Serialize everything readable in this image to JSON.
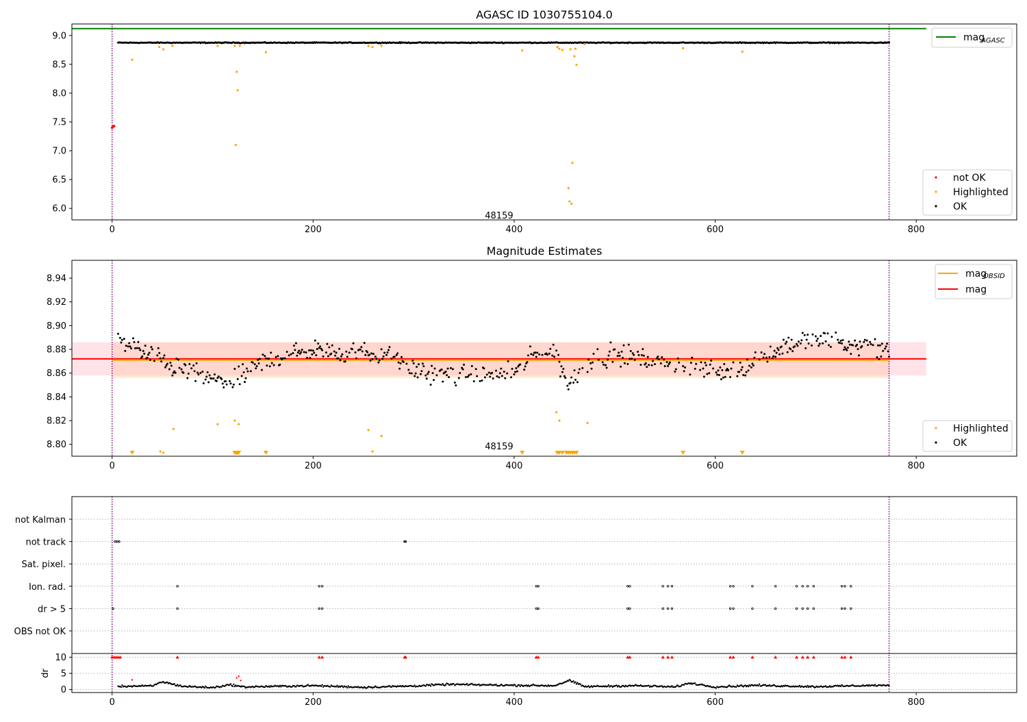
{
  "colors": {
    "ok": "#000000",
    "highlighted": "#ffa500",
    "not_ok": "#ff0000",
    "agasc_line": "#008000",
    "mag_line": "#ff0000",
    "mag_obsid_line": "#ffa500",
    "band_red": "#ffc0cb",
    "band_orange": "#ffdab0",
    "boundary": "#800080"
  },
  "obsid_label": "48159",
  "chart_data": [
    {
      "type": "scatter",
      "title": "AGASC ID 1030755104.0",
      "xlim": [
        -40,
        900
      ],
      "ylim": [
        5.8,
        9.2
      ],
      "xticks": [
        "0",
        "200",
        "400",
        "600",
        "800"
      ],
      "yticks": [
        "6.0",
        "6.5",
        "7.0",
        "7.5",
        "8.0",
        "8.5",
        "9.0"
      ],
      "boundaries": [
        0,
        773
      ],
      "annotation": {
        "text": "48159",
        "x": 385,
        "y": 5.87
      },
      "mag_agasc": 9.12,
      "ok_level": 8.875,
      "ok_jitter": 0.012,
      "ok_range": [
        6,
        773
      ],
      "highlighted": [
        [
          20,
          8.58
        ],
        [
          47,
          8.8
        ],
        [
          51,
          8.76
        ],
        [
          60,
          8.82
        ],
        [
          105,
          8.82
        ],
        [
          122,
          8.82
        ],
        [
          124,
          8.37
        ],
        [
          125,
          8.05
        ],
        [
          123,
          7.1
        ],
        [
          127,
          8.82
        ],
        [
          153,
          8.71
        ],
        [
          255,
          8.82
        ],
        [
          259,
          8.8
        ],
        [
          268,
          8.82
        ],
        [
          408,
          8.74
        ],
        [
          443,
          8.8
        ],
        [
          445,
          8.77
        ],
        [
          448,
          8.75
        ],
        [
          454,
          6.35
        ],
        [
          455,
          6.12
        ],
        [
          456,
          8.76
        ],
        [
          457,
          6.08
        ],
        [
          458,
          6.79
        ],
        [
          460,
          8.64
        ],
        [
          461,
          8.77
        ],
        [
          462,
          8.49
        ],
        [
          470,
          8.85
        ],
        [
          568,
          8.78
        ],
        [
          627,
          8.72
        ]
      ],
      "not_ok": [
        [
          0,
          7.4
        ],
        [
          1,
          7.42
        ],
        [
          2,
          7.43
        ]
      ],
      "legend": {
        "agasc_main": "mag",
        "agasc_sub": "AGASC",
        "not_ok": "not OK",
        "highlighted": "Highlighted",
        "ok": "OK"
      }
    },
    {
      "type": "scatter",
      "title": "Magnitude Estimates",
      "xlim": [
        -40,
        900
      ],
      "ylim": [
        8.79,
        8.955
      ],
      "xticks": [
        "0",
        "200",
        "400",
        "600",
        "800"
      ],
      "yticks": [
        "8.80",
        "8.82",
        "8.84",
        "8.86",
        "8.88",
        "8.90",
        "8.92",
        "8.94"
      ],
      "boundaries": [
        0,
        773
      ],
      "annotation": {
        "text": "48159",
        "x": 385,
        "y": 8.798
      },
      "mag": 8.872,
      "mag_band": [
        8.858,
        8.886
      ],
      "mag_obsid": 8.871,
      "mag_obsid_band": [
        8.856,
        8.886
      ],
      "ok_trend": [
        [
          6,
          8.89
        ],
        [
          30,
          8.878
        ],
        [
          60,
          8.866
        ],
        [
          80,
          8.86
        ],
        [
          100,
          8.854
        ],
        [
          120,
          8.852
        ],
        [
          150,
          8.87
        ],
        [
          200,
          8.88
        ],
        [
          250,
          8.878
        ],
        [
          280,
          8.875
        ],
        [
          300,
          8.862
        ],
        [
          350,
          8.858
        ],
        [
          400,
          8.86
        ],
        [
          420,
          8.875
        ],
        [
          440,
          8.878
        ],
        [
          455,
          8.85
        ],
        [
          470,
          8.868
        ],
        [
          500,
          8.877
        ],
        [
          540,
          8.87
        ],
        [
          580,
          8.864
        ],
        [
          620,
          8.862
        ],
        [
          640,
          8.87
        ],
        [
          670,
          8.884
        ],
        [
          700,
          8.888
        ],
        [
          740,
          8.884
        ],
        [
          773,
          8.88
        ]
      ],
      "ok_scatter": 0.013,
      "highlighted": [
        [
          48,
          8.794
        ],
        [
          51,
          8.793
        ],
        [
          61,
          8.813
        ],
        [
          105,
          8.817
        ],
        [
          122,
          8.82
        ],
        [
          126,
          8.817
        ],
        [
          255,
          8.812
        ],
        [
          259,
          8.794
        ],
        [
          268,
          8.807
        ],
        [
          442,
          8.827
        ],
        [
          445,
          8.82
        ],
        [
          473,
          8.818
        ]
      ],
      "off_scale_x": [
        20,
        122,
        123,
        124,
        125,
        126,
        153,
        408,
        443,
        445,
        448,
        452,
        454,
        456,
        458,
        460,
        462,
        568,
        627
      ],
      "legend": {
        "obsid_main": "mag",
        "obsid_sub": "OBSID",
        "mag": "mag",
        "highlighted": "Highlighted",
        "ok": "OK"
      }
    },
    {
      "type": "scatter",
      "xlim": [
        -40,
        900
      ],
      "xticks": [
        "0",
        "200",
        "400",
        "600",
        "800"
      ],
      "boundaries": [
        0,
        773
      ],
      "flag_rows": [
        "not Kalman",
        "not track",
        "Sat. pixel.",
        "Ion. rad.",
        "dr > 5",
        "OBS not OK"
      ],
      "flags": {
        "not track": [
          3,
          5,
          7,
          291,
          292
        ],
        "Ion. rad.": [
          65,
          206,
          209,
          422,
          424,
          513,
          515,
          548,
          553,
          557,
          615,
          618,
          637,
          660,
          681,
          687,
          692,
          698,
          726,
          729,
          735
        ],
        "dr > 5": [
          1,
          65,
          206,
          209,
          422,
          424,
          513,
          515,
          548,
          553,
          557,
          615,
          618,
          637,
          660,
          681,
          687,
          692,
          698,
          726,
          729,
          735
        ]
      },
      "dr_ylabel": "dr",
      "dr_yticks": [
        "0",
        "5",
        "10"
      ],
      "dr_ylim": [
        -0.5,
        10.5
      ],
      "dr_flagged": [
        0,
        2,
        4,
        6,
        8,
        65,
        206,
        209,
        291,
        292,
        422,
        424,
        513,
        515,
        548,
        553,
        557,
        615,
        618,
        637,
        660,
        681,
        687,
        692,
        698,
        726,
        729,
        735
      ],
      "dr_red_points": [
        [
          20,
          3.0
        ],
        [
          124,
          3.6
        ],
        [
          126,
          4.1
        ],
        [
          128,
          2.8
        ]
      ],
      "dr_trend": [
        [
          6,
          1.0
        ],
        [
          40,
          1.1
        ],
        [
          50,
          2.4
        ],
        [
          70,
          1.0
        ],
        [
          100,
          0.6
        ],
        [
          118,
          1.5
        ],
        [
          130,
          0.8
        ],
        [
          200,
          1.2
        ],
        [
          250,
          0.7
        ],
        [
          300,
          1.1
        ],
        [
          335,
          1.6
        ],
        [
          400,
          1.3
        ],
        [
          440,
          1.2
        ],
        [
          455,
          2.8
        ],
        [
          470,
          0.9
        ],
        [
          520,
          1.2
        ],
        [
          560,
          0.8
        ],
        [
          575,
          2.0
        ],
        [
          600,
          0.8
        ],
        [
          640,
          1.3
        ],
        [
          700,
          0.9
        ],
        [
          760,
          1.3
        ],
        [
          773,
          1.2
        ]
      ]
    }
  ]
}
